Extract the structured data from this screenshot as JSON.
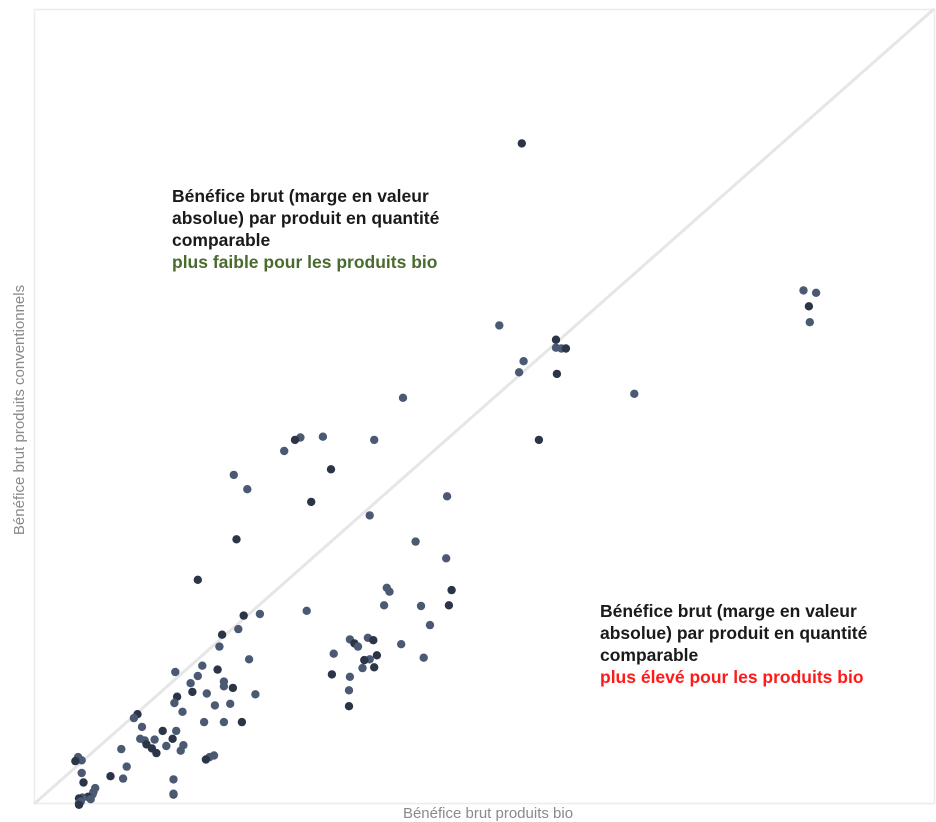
{
  "chart_data": {
    "type": "scatter",
    "title": "",
    "xlabel": "Bénéfice brut produits bio",
    "ylabel": "Bénéfice brut produits conventionnels",
    "xlim": [
      0,
      100
    ],
    "ylim": [
      0,
      100
    ],
    "grid": false,
    "reference_line": "y = x",
    "colors": {
      "point": "#4b5a72",
      "point_dark": "#2b3547",
      "diagonal": "#e6e6e6",
      "frame": "#ececec",
      "axis_label": "#8a8a8a",
      "annotation_text": "#1a1a1a",
      "annotation_green": "#4a6b2e",
      "annotation_red": "#ff1a1a"
    },
    "annotations": [
      {
        "lines": [
          "Bénéfice brut (marge en valeur",
          "absolue) par produit en quantité",
          "comparable"
        ],
        "highlight": "plus faible pour les produits bio",
        "highlight_color": "#4a6b2e"
      },
      {
        "lines": [
          "Bénéfice brut (marge en valeur",
          "absolue) par produit en quantité",
          "comparable"
        ],
        "highlight": "plus élevé pour les produits bio",
        "highlight_color": "#ff1a1a"
      }
    ],
    "points": [
      {
        "x": 54.2,
        "y": 83.1
      },
      {
        "x": 85.5,
        "y": 64.6
      },
      {
        "x": 86.9,
        "y": 64.3
      },
      {
        "x": 86.1,
        "y": 62.6
      },
      {
        "x": 86.2,
        "y": 60.6
      },
      {
        "x": 51.7,
        "y": 60.2
      },
      {
        "x": 58.0,
        "y": 58.4
      },
      {
        "x": 58.0,
        "y": 57.4
      },
      {
        "x": 58.6,
        "y": 57.3
      },
      {
        "x": 59.1,
        "y": 57.3
      },
      {
        "x": 54.4,
        "y": 55.7
      },
      {
        "x": 53.9,
        "y": 54.3
      },
      {
        "x": 58.1,
        "y": 54.1
      },
      {
        "x": 66.7,
        "y": 51.6
      },
      {
        "x": 41.0,
        "y": 51.1
      },
      {
        "x": 56.1,
        "y": 45.8
      },
      {
        "x": 32.1,
        "y": 46.2
      },
      {
        "x": 29.6,
        "y": 46.1
      },
      {
        "x": 29.0,
        "y": 45.8
      },
      {
        "x": 37.8,
        "y": 45.8
      },
      {
        "x": 27.8,
        "y": 44.4
      },
      {
        "x": 33.0,
        "y": 42.1
      },
      {
        "x": 22.2,
        "y": 41.4
      },
      {
        "x": 23.7,
        "y": 39.6
      },
      {
        "x": 30.8,
        "y": 38.0
      },
      {
        "x": 45.9,
        "y": 38.7
      },
      {
        "x": 37.3,
        "y": 36.3
      },
      {
        "x": 22.5,
        "y": 33.3
      },
      {
        "x": 42.4,
        "y": 33.0
      },
      {
        "x": 45.8,
        "y": 30.9
      },
      {
        "x": 18.2,
        "y": 28.2
      },
      {
        "x": 39.2,
        "y": 27.2
      },
      {
        "x": 39.5,
        "y": 26.7
      },
      {
        "x": 46.4,
        "y": 26.9
      },
      {
        "x": 38.9,
        "y": 25.0
      },
      {
        "x": 43.0,
        "y": 24.9
      },
      {
        "x": 46.1,
        "y": 25.0
      },
      {
        "x": 30.3,
        "y": 24.3
      },
      {
        "x": 25.1,
        "y": 23.9
      },
      {
        "x": 23.3,
        "y": 23.7
      },
      {
        "x": 44.0,
        "y": 22.5
      },
      {
        "x": 22.7,
        "y": 22.0
      },
      {
        "x": 20.9,
        "y": 21.3
      },
      {
        "x": 35.1,
        "y": 20.7
      },
      {
        "x": 37.1,
        "y": 20.9
      },
      {
        "x": 37.7,
        "y": 20.6
      },
      {
        "x": 40.8,
        "y": 20.1
      },
      {
        "x": 20.6,
        "y": 19.8
      },
      {
        "x": 35.6,
        "y": 20.2
      },
      {
        "x": 36.0,
        "y": 19.8
      },
      {
        "x": 33.3,
        "y": 18.9
      },
      {
        "x": 38.1,
        "y": 18.7
      },
      {
        "x": 37.3,
        "y": 18.2
      },
      {
        "x": 23.9,
        "y": 18.2
      },
      {
        "x": 36.7,
        "y": 18.1
      },
      {
        "x": 43.3,
        "y": 18.4
      },
      {
        "x": 18.7,
        "y": 17.4
      },
      {
        "x": 20.4,
        "y": 16.9
      },
      {
        "x": 15.7,
        "y": 16.6
      },
      {
        "x": 36.5,
        "y": 17.1
      },
      {
        "x": 37.8,
        "y": 17.2
      },
      {
        "x": 35.1,
        "y": 16.0
      },
      {
        "x": 18.2,
        "y": 16.1
      },
      {
        "x": 33.1,
        "y": 16.3
      },
      {
        "x": 21.1,
        "y": 15.4
      },
      {
        "x": 21.1,
        "y": 14.8
      },
      {
        "x": 22.1,
        "y": 14.6
      },
      {
        "x": 17.4,
        "y": 15.2
      },
      {
        "x": 35.0,
        "y": 14.3
      },
      {
        "x": 17.6,
        "y": 14.1
      },
      {
        "x": 19.2,
        "y": 13.9
      },
      {
        "x": 24.6,
        "y": 13.8
      },
      {
        "x": 15.9,
        "y": 13.5
      },
      {
        "x": 15.6,
        "y": 12.7
      },
      {
        "x": 21.8,
        "y": 12.6
      },
      {
        "x": 35.0,
        "y": 12.3
      },
      {
        "x": 20.1,
        "y": 12.4
      },
      {
        "x": 16.5,
        "y": 11.6
      },
      {
        "x": 11.5,
        "y": 11.3
      },
      {
        "x": 11.1,
        "y": 10.8
      },
      {
        "x": 21.1,
        "y": 10.3
      },
      {
        "x": 23.1,
        "y": 10.3
      },
      {
        "x": 18.9,
        "y": 10.3
      },
      {
        "x": 12.0,
        "y": 9.7
      },
      {
        "x": 14.3,
        "y": 9.2
      },
      {
        "x": 15.8,
        "y": 9.2
      },
      {
        "x": 11.8,
        "y": 8.2
      },
      {
        "x": 15.4,
        "y": 8.2
      },
      {
        "x": 12.3,
        "y": 8.0
      },
      {
        "x": 13.4,
        "y": 8.1
      },
      {
        "x": 12.5,
        "y": 7.5
      },
      {
        "x": 14.7,
        "y": 7.3
      },
      {
        "x": 16.6,
        "y": 7.4
      },
      {
        "x": 13.1,
        "y": 7.0
      },
      {
        "x": 9.7,
        "y": 6.9
      },
      {
        "x": 16.3,
        "y": 6.7
      },
      {
        "x": 13.6,
        "y": 6.4
      },
      {
        "x": 19.5,
        "y": 5.9
      },
      {
        "x": 20.0,
        "y": 6.1
      },
      {
        "x": 19.1,
        "y": 5.6
      },
      {
        "x": 4.9,
        "y": 5.9
      },
      {
        "x": 5.3,
        "y": 5.5
      },
      {
        "x": 4.6,
        "y": 5.4
      },
      {
        "x": 10.3,
        "y": 4.7
      },
      {
        "x": 5.3,
        "y": 3.9
      },
      {
        "x": 8.5,
        "y": 3.5
      },
      {
        "x": 9.9,
        "y": 3.2
      },
      {
        "x": 15.5,
        "y": 3.1
      },
      {
        "x": 5.5,
        "y": 2.7
      },
      {
        "x": 6.8,
        "y": 2.0
      },
      {
        "x": 6.6,
        "y": 1.5
      },
      {
        "x": 15.5,
        "y": 1.2
      },
      {
        "x": 15.5,
        "y": 1.3
      },
      {
        "x": 6.5,
        "y": 1.2
      },
      {
        "x": 6.0,
        "y": 0.9
      },
      {
        "x": 5.4,
        "y": 0.8
      },
      {
        "x": 6.3,
        "y": 0.6
      },
      {
        "x": 5.0,
        "y": 0.7
      },
      {
        "x": 5.2,
        "y": 0.3
      },
      {
        "x": 5.0,
        "y": 0.1
      },
      {
        "x": 5.0,
        "y": -0.1
      }
    ]
  }
}
